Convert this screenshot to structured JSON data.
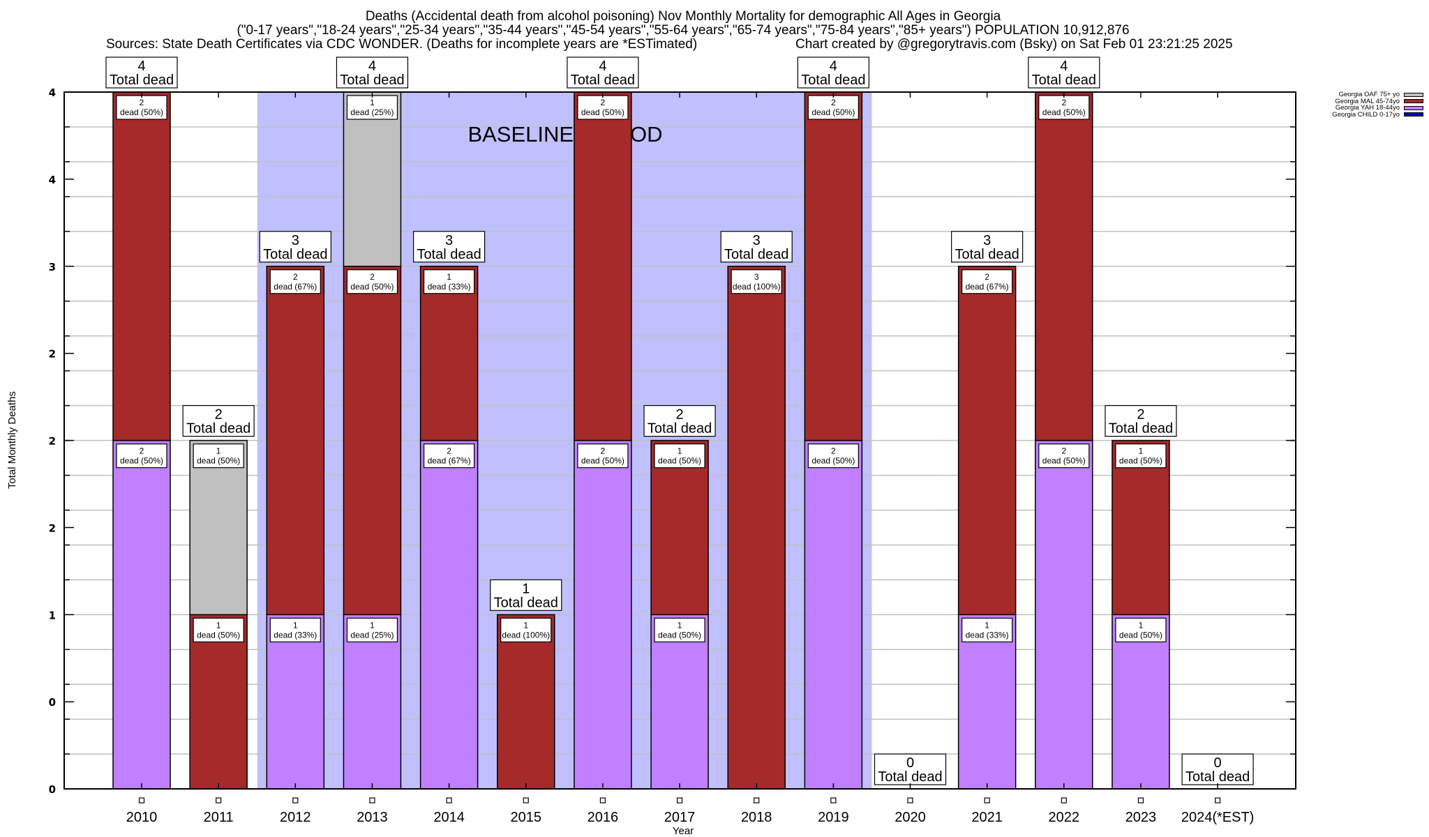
{
  "header": {
    "title_line1": "Deaths (Accidental death from alcohol poisoning) Nov Monthly Mortality for demographic All Ages in Georgia",
    "title_line2": "(\"0-17 years\",\"18-24 years\",\"25-34 years\",\"35-44 years\",\"45-54 years\",\"55-64 years\",\"65-74 years\",\"75-84 years\",\"85+ years\") POPULATION 10,912,876",
    "sources": "Sources: State Death Certificates via CDC WONDER. (Deaths for incomplete years are *ESTimated)",
    "credit": "Chart created by @gregorytravis.com (Bsky) on Sat Feb 01 23:21:25 2025"
  },
  "chart_data": {
    "type": "bar",
    "stacked": true,
    "title": "Deaths (Accidental death from alcohol poisoning) Nov Monthly Mortality for demographic All Ages in Georgia",
    "xlabel": "Year",
    "ylabel": "Total Monthly Deaths",
    "ylim": [
      0,
      4
    ],
    "ytick_values": [
      0,
      0.5,
      1,
      1.5,
      2,
      2.5,
      3,
      3.5,
      4
    ],
    "ytick_labels": [
      "0",
      "0",
      "1",
      "2",
      "2",
      "2",
      "3",
      "4",
      "4"
    ],
    "minor_grid_step": 0.2,
    "grid": true,
    "legend_position": "top-right",
    "annotation": "BASELINE PERIOD",
    "baseline_period": [
      "2012",
      "2019"
    ],
    "total_label_suffix": "Total dead",
    "segment_label_word": "dead",
    "categories": [
      "2010",
      "2011",
      "2012",
      "2013",
      "2014",
      "2015",
      "2016",
      "2017",
      "2018",
      "2019",
      "2020",
      "2021",
      "2022",
      "2023",
      "2024(*EST)"
    ],
    "series": [
      {
        "name": "Georgia CHILD 0-17yo",
        "color": "#0000cc",
        "values": [
          0,
          0,
          0,
          0,
          0,
          0,
          0,
          0,
          0,
          0,
          0,
          0,
          0,
          0,
          0
        ]
      },
      {
        "name": "Georgia YAH 18-44yo",
        "color": "#c080ff",
        "values": [
          2,
          0,
          1,
          1,
          2,
          0,
          2,
          1,
          0,
          2,
          0,
          1,
          2,
          1,
          0
        ]
      },
      {
        "name": "Georgia MAL 45-74yo",
        "color": "#a52a2a",
        "values": [
          2,
          1,
          2,
          2,
          1,
          1,
          2,
          1,
          3,
          2,
          0,
          2,
          2,
          1,
          0
        ]
      },
      {
        "name": "Georgia OAF 75+ yo",
        "color": "#c0c0c0",
        "values": [
          0,
          1,
          0,
          1,
          0,
          0,
          0,
          0,
          0,
          0,
          0,
          0,
          0,
          0,
          0
        ]
      }
    ],
    "totals": [
      4,
      2,
      3,
      4,
      3,
      1,
      4,
      2,
      3,
      4,
      0,
      3,
      4,
      2,
      0
    ],
    "legend_order": [
      "Georgia OAF 75+ yo",
      "Georgia MAL 45-74yo",
      "Georgia YAH 18-44yo",
      "Georgia CHILD 0-17yo"
    ]
  },
  "colors": {
    "baseline_shade": "#c0c0ff",
    "grid": "#c0c0c0",
    "axis": "#000000"
  }
}
